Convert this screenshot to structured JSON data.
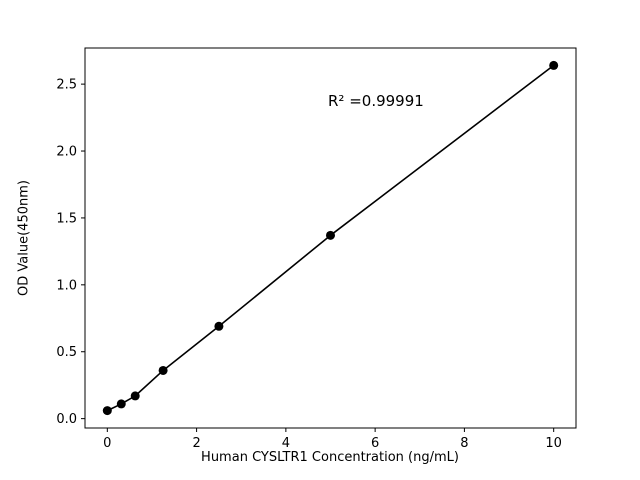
{
  "chart_data": {
    "type": "scatter",
    "title": "",
    "xlabel": "Human CYSLTR1 Concentration (ng/mL)",
    "ylabel": "OD Value(450nm)",
    "annotation": {
      "text": "R² =0.99991"
    },
    "x": [
      0,
      0.313,
      0.625,
      1.25,
      2.5,
      5,
      10
    ],
    "y": [
      0.06,
      0.11,
      0.17,
      0.36,
      0.69,
      1.37,
      2.64
    ],
    "xlim": [
      -0.5,
      10.5
    ],
    "ylim": [
      -0.07,
      2.77
    ],
    "xticks": [
      0,
      2,
      4,
      6,
      8,
      10
    ],
    "xtick_labels": [
      "0",
      "2",
      "4",
      "6",
      "8",
      "10"
    ],
    "yticks": [
      0.0,
      0.5,
      1.0,
      1.5,
      2.0,
      2.5
    ],
    "ytick_labels": [
      "0.0",
      "0.5",
      "1.0",
      "1.5",
      "2.0",
      "2.5"
    ],
    "grid": false,
    "legend": "none",
    "line_color": "#000000",
    "marker_color": "#000000",
    "background": "#ffffff"
  }
}
